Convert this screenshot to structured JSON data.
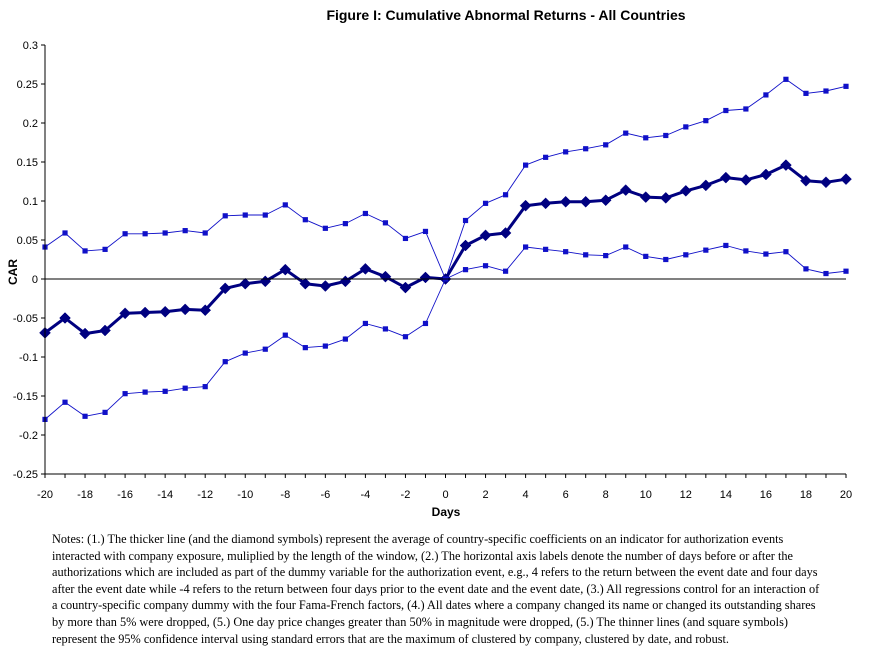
{
  "chart_data": {
    "type": "line",
    "title": "Figure I: Cumulative Abnormal Returns - All Countries",
    "xlabel": "Days",
    "ylabel": "CAR",
    "xlim": [
      -20,
      20
    ],
    "ylim": [
      -0.25,
      0.3
    ],
    "x_ticks": [
      -20,
      -18,
      -16,
      -14,
      -12,
      -10,
      -8,
      -6,
      -4,
      -2,
      0,
      2,
      4,
      6,
      8,
      10,
      12,
      14,
      16,
      18,
      20
    ],
    "y_ticks": [
      {
        "value": 0.3,
        "label": "0.3"
      },
      {
        "value": 0.25,
        "label": "0.25"
      },
      {
        "value": 0.2,
        "label": "0.2"
      },
      {
        "value": 0.15,
        "label": "0.15"
      },
      {
        "value": 0.1,
        "label": "0.1"
      },
      {
        "value": 0.05,
        "label": "0.05"
      },
      {
        "value": 0,
        "label": "0"
      },
      {
        "value": -0.05,
        "label": "-0.05"
      },
      {
        "value": -0.1,
        "label": "-0.1"
      },
      {
        "value": -0.15,
        "label": "-0.15"
      },
      {
        "value": -0.2,
        "label": "-0.2"
      },
      {
        "value": -0.25,
        "label": "-0.25"
      }
    ],
    "grid": false,
    "zero_line": true,
    "x": [
      -20,
      -19,
      -18,
      -17,
      -16,
      -15,
      -14,
      -13,
      -12,
      -11,
      -10,
      -9,
      -8,
      -7,
      -6,
      -5,
      -4,
      -3,
      -2,
      -1,
      0,
      1,
      2,
      3,
      4,
      5,
      6,
      7,
      8,
      9,
      10,
      11,
      12,
      13,
      14,
      15,
      16,
      17,
      18,
      19,
      20
    ],
    "series": [
      {
        "role": "upper_ci",
        "color": "#1010c8",
        "marker": "square",
        "values": [
          0.041,
          0.059,
          0.036,
          0.038,
          0.058,
          0.058,
          0.059,
          0.062,
          0.059,
          0.081,
          0.082,
          0.082,
          0.095,
          0.076,
          0.065,
          0.071,
          0.084,
          0.072,
          0.052,
          0.061,
          0.0,
          0.075,
          0.097,
          0.108,
          0.146,
          0.156,
          0.163,
          0.167,
          0.172,
          0.187,
          0.181,
          0.184,
          0.195,
          0.203,
          0.216,
          0.218,
          0.236,
          0.256,
          0.238,
          0.241,
          0.247
        ]
      },
      {
        "role": "mean",
        "color": "#000080",
        "marker": "diamond",
        "values": [
          -0.069,
          -0.05,
          -0.07,
          -0.066,
          -0.044,
          -0.043,
          -0.042,
          -0.039,
          -0.04,
          -0.012,
          -0.006,
          -0.003,
          0.012,
          -0.006,
          -0.009,
          -0.003,
          0.013,
          0.003,
          -0.011,
          0.002,
          0.0,
          0.043,
          0.056,
          0.059,
          0.094,
          0.097,
          0.099,
          0.099,
          0.101,
          0.114,
          0.105,
          0.104,
          0.113,
          0.12,
          0.13,
          0.127,
          0.134,
          0.146,
          0.126,
          0.124,
          0.128
        ]
      },
      {
        "role": "lower_ci",
        "color": "#1010c8",
        "marker": "square",
        "values": [
          -0.18,
          -0.158,
          -0.176,
          -0.171,
          -0.147,
          -0.145,
          -0.144,
          -0.14,
          -0.138,
          -0.106,
          -0.095,
          -0.09,
          -0.072,
          -0.088,
          -0.086,
          -0.077,
          -0.057,
          -0.064,
          -0.074,
          -0.057,
          0.0,
          0.012,
          0.017,
          0.01,
          0.041,
          0.038,
          0.035,
          0.031,
          0.03,
          0.041,
          0.029,
          0.025,
          0.031,
          0.037,
          0.043,
          0.036,
          0.032,
          0.035,
          0.013,
          0.007,
          0.01
        ]
      }
    ]
  },
  "notes": "Notes: (1.) The thicker line (and the diamond symbols) represent the average of country-specific coefficients on an indicator for authorization events interacted with company exposure, muliplied by the length of the window, (2.) The horizontal axis labels denote the number of days before or after the authorizations which are included as part of the dummy variable for the authorization event, e.g., 4 refers to the return between the event date and four days after the event date while -4 refers to the return between four days prior to the event date and the event date, (3.) All regressions control for an interaction of a country-specific company dummy with the four Fama-French factors, (4.) All dates where a company changed its name or changed its outstanding shares by more than 5% were dropped, (5.) One day price changes greater than 50% in magnitude were dropped, (5.) The thinner lines (and square symbols) represent the 95% confidence interval using standard errors that are the maximum of clustered by company, clustered by date, and robust."
}
